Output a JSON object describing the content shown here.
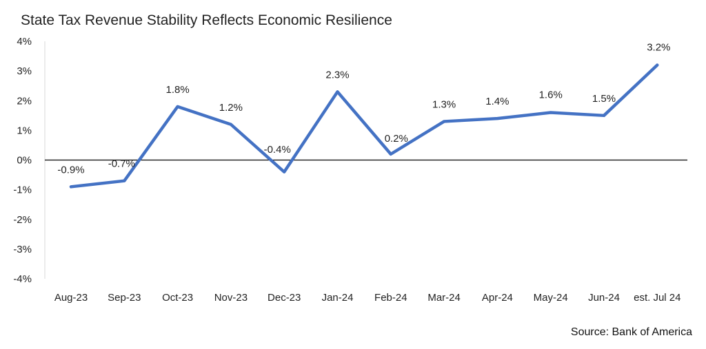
{
  "title": "State Tax Revenue Stability Reflects Economic Resilience",
  "source": "Source: Bank of America",
  "colors": {
    "line": "#4472C4",
    "axis": "#000000",
    "yaxis": "#d9d9d9"
  },
  "chart_data": {
    "type": "line",
    "title": "State Tax Revenue Stability Reflects Economic Resilience",
    "xlabel": "",
    "ylabel": "",
    "categories": [
      "Aug-23",
      "Sep-23",
      "Oct-23",
      "Nov-23",
      "Dec-23",
      "Jan-24",
      "Feb-24",
      "Mar-24",
      "Apr-24",
      "May-24",
      "Jun-24",
      "est. Jul 24"
    ],
    "series": [
      {
        "values": [
          -0.9,
          -0.7,
          1.8,
          1.2,
          -0.4,
          2.3,
          0.2,
          1.3,
          1.4,
          1.6,
          1.5,
          3.2
        ]
      }
    ],
    "data_labels": [
      "-0.9%",
      "-0.7%",
      "1.8%",
      "1.2%",
      "-0.4%",
      "2.3%",
      "0.2%",
      "1.3%",
      "1.4%",
      "1.6%",
      "1.5%",
      "3.2%"
    ],
    "ylim": [
      -4,
      4
    ],
    "yticks": [
      4,
      3,
      2,
      1,
      0,
      -1,
      -2,
      -3,
      -4
    ],
    "ytick_labels": [
      "4%",
      "3%",
      "2%",
      "1%",
      "0%",
      "-1%",
      "-2%",
      "-3%",
      "-4%"
    ],
    "grid": false,
    "legend": "none"
  }
}
